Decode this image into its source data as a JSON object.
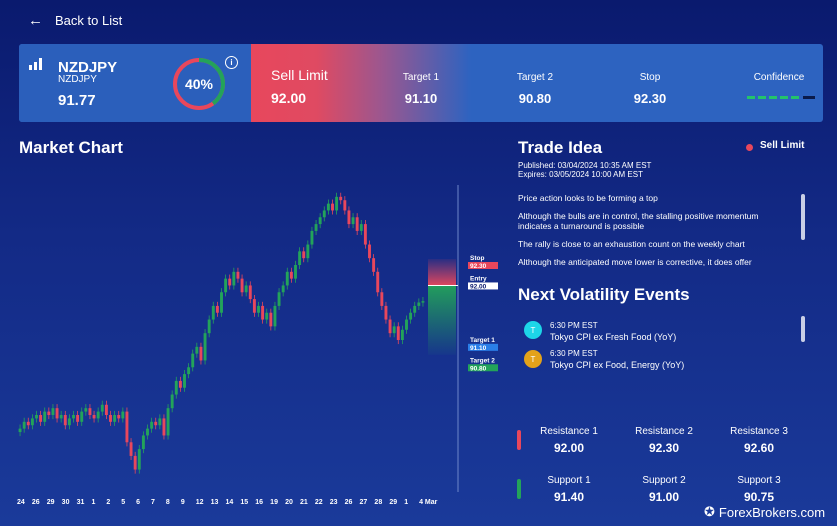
{
  "nav": {
    "back_label": "Back to List"
  },
  "instrument": {
    "symbol": "NZDJPY",
    "subtitle": "NZDJPY",
    "price": "91.77",
    "gauge_pct": 40,
    "gauge_label": "40%"
  },
  "order": {
    "type": "Sell Limit",
    "value": "92.00"
  },
  "columns": [
    {
      "label": "Target 1",
      "value": "91.10"
    },
    {
      "label": "Target 2",
      "value": "90.80"
    },
    {
      "label": "Stop",
      "value": "92.30"
    },
    {
      "label": "Confidence",
      "value": ""
    }
  ],
  "market_chart": {
    "title": "Market Chart"
  },
  "chart_data": {
    "type": "candlestick",
    "x_tick_labels": [
      "24",
      "26",
      "29",
      "30",
      "31",
      "1",
      "2",
      "5",
      "6",
      "7",
      "8",
      "9",
      "12",
      "13",
      "14",
      "15",
      "16",
      "19",
      "20",
      "21",
      "22",
      "23",
      "26",
      "27",
      "28",
      "29",
      "1",
      "4 Mar"
    ],
    "ylim": [
      89.0,
      93.4
    ],
    "candles_close": [
      89.9,
      90.0,
      89.95,
      90.05,
      90.1,
      90.0,
      90.15,
      90.1,
      90.2,
      90.05,
      90.1,
      89.95,
      90.05,
      90.1,
      90.0,
      90.15,
      90.2,
      90.1,
      90.05,
      90.15,
      90.25,
      90.1,
      90.0,
      90.1,
      90.05,
      90.15,
      89.7,
      89.5,
      89.3,
      89.6,
      89.8,
      89.9,
      90.0,
      89.95,
      90.05,
      89.8,
      90.2,
      90.4,
      90.6,
      90.5,
      90.7,
      90.8,
      91.0,
      91.1,
      90.9,
      91.3,
      91.5,
      91.7,
      91.6,
      91.9,
      92.1,
      92.0,
      92.2,
      92.1,
      91.9,
      92.0,
      91.8,
      91.6,
      91.7,
      91.5,
      91.6,
      91.4,
      91.7,
      91.9,
      92.0,
      92.2,
      92.1,
      92.3,
      92.5,
      92.4,
      92.6,
      92.8,
      92.9,
      93.0,
      93.1,
      93.2,
      93.1,
      93.3,
      93.25,
      93.1,
      92.9,
      93.0,
      92.8,
      92.9,
      92.6,
      92.4,
      92.2,
      91.9,
      91.7,
      91.5,
      91.3,
      91.4,
      91.2,
      91.35,
      91.5,
      91.6,
      91.7,
      91.75,
      91.77
    ],
    "levels": [
      {
        "name": "Stop",
        "value": "92.30",
        "color": "#e8475c"
      },
      {
        "name": "Entry",
        "value": "92.00",
        "color": "#ffffff"
      },
      {
        "name": "Target 1",
        "value": "91.10",
        "color": "#2a7fe8"
      },
      {
        "name": "Target 2",
        "value": "90.80",
        "color": "#23a35a"
      }
    ]
  },
  "trade_idea": {
    "title": "Trade Idea",
    "published": "Published: 03/04/2024 10:35 AM EST",
    "expires": "Expires: 03/05/2024 10:00 AM EST",
    "tag": "Sell Limit",
    "points": [
      "Price action looks to be forming a top",
      "Although the bulls are in control, the stalling positive momentum indicates a turnaround is possible",
      "The rally is close to an exhaustion count on the weekly chart",
      "Although the anticipated move lower is corrective, it does offer"
    ]
  },
  "events": {
    "title": "Next Volatility Events",
    "items": [
      {
        "time": "6:30 PM EST",
        "name": "Tokyo CPI ex Fresh Food (YoY)",
        "icon": "T",
        "color": "#1dd6e8"
      },
      {
        "time": "6:30 PM EST",
        "name": "Tokyo CPI ex Food, Energy (YoY)",
        "icon": "T",
        "color": "#e3a21a"
      }
    ]
  },
  "resistance": [
    {
      "label": "Resistance 1",
      "value": "92.00"
    },
    {
      "label": "Resistance 2",
      "value": "92.30"
    },
    {
      "label": "Resistance 3",
      "value": "92.60"
    }
  ],
  "support": [
    {
      "label": "Support 1",
      "value": "91.40"
    },
    {
      "label": "Support 2",
      "value": "91.00"
    },
    {
      "label": "Support 3",
      "value": "90.75"
    }
  ],
  "colors": {
    "bull": "#23a35a",
    "bear": "#e8475c",
    "accent": "#2d63c0"
  },
  "watermark": {
    "text": "ForexBrokers.com"
  }
}
